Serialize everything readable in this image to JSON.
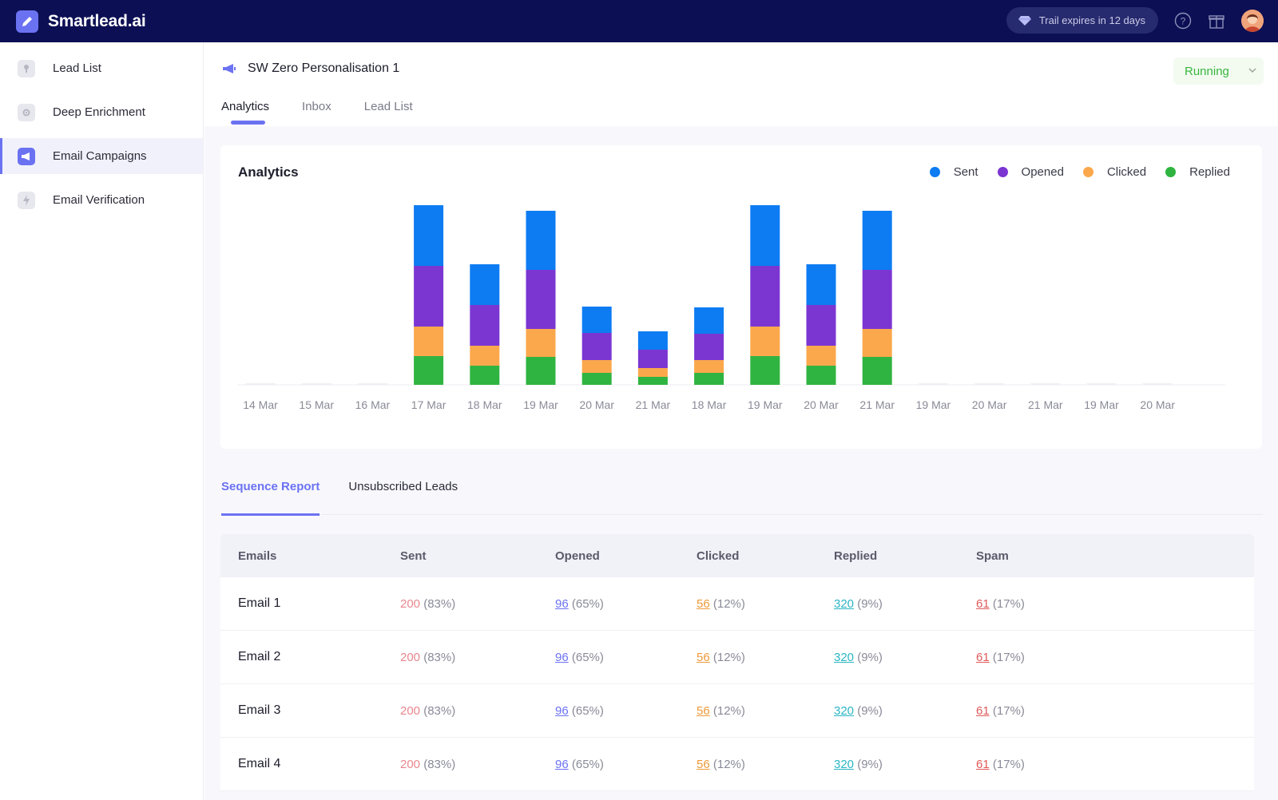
{
  "app": {
    "name": "Smartlead.ai"
  },
  "topbar": {
    "trial_text": "Trail expires in 12 days"
  },
  "sidebar": {
    "items": [
      {
        "label": "Lead List",
        "icon": "lead-list-icon"
      },
      {
        "label": "Deep Enrichment",
        "icon": "enrichment-icon"
      },
      {
        "label": "Email Campaigns",
        "icon": "megaphone-icon",
        "active": true
      },
      {
        "label": "Email Verification",
        "icon": "lightning-icon"
      }
    ]
  },
  "campaign": {
    "title": "SW Zero Personalisation 1",
    "status": "Running",
    "tabs": [
      "Analytics",
      "Inbox",
      "Lead List"
    ],
    "active_tab": "Analytics"
  },
  "colors": {
    "sent": "#0d7cf2",
    "opened": "#7b36d2",
    "clicked": "#fba84c",
    "replied": "#30b441",
    "accent": "#6b72f2"
  },
  "chart_data": {
    "type": "bar",
    "stacked": true,
    "title": "Analytics",
    "categories": [
      "14 Mar",
      "15 Mar",
      "16 Mar",
      "17 Mar",
      "18 Mar",
      "19 Mar",
      "20 Mar",
      "21 Mar",
      "18 Mar",
      "19 Mar",
      "20 Mar",
      "21 Mar",
      "19 Mar",
      "20 Mar",
      "21 Mar",
      "19 Mar",
      "20 Mar"
    ],
    "series": [
      {
        "name": "Replied",
        "color": "#30b441",
        "values": [
          0,
          0,
          0,
          36,
          24,
          35,
          15,
          10,
          15,
          36,
          24,
          35,
          0,
          0,
          0,
          0,
          0
        ]
      },
      {
        "name": "Clicked",
        "color": "#fba84c",
        "values": [
          0,
          0,
          0,
          37,
          25,
          35,
          16,
          11,
          16,
          37,
          25,
          35,
          0,
          0,
          0,
          0,
          0
        ]
      },
      {
        "name": "Opened",
        "color": "#7b36d2",
        "values": [
          0,
          0,
          0,
          76,
          51,
          74,
          34,
          23,
          33,
          76,
          51,
          74,
          0,
          0,
          0,
          0,
          0
        ]
      },
      {
        "name": "Sent",
        "color": "#0d7cf2",
        "values": [
          0,
          0,
          0,
          76,
          51,
          74,
          33,
          23,
          33,
          76,
          51,
          74,
          0,
          0,
          0,
          0,
          0
        ]
      }
    ],
    "legend_order": [
      "Sent",
      "Opened",
      "Clicked",
      "Replied"
    ],
    "ylim": [
      0,
      230
    ],
    "grid": false,
    "legend_position": "top-right"
  },
  "report": {
    "tabs": [
      "Sequence Report",
      "Unsubscribed Leads"
    ],
    "active_tab": "Sequence Report",
    "columns": [
      "Emails",
      "Sent",
      "Opened",
      "Clicked",
      "Replied",
      "Spam"
    ],
    "rows": [
      {
        "email": "Email 1",
        "sent": "200",
        "sent_pct": "(83%)",
        "opened": "96",
        "opened_pct": "(65%)",
        "clicked": "56",
        "clicked_pct": "(12%)",
        "replied": "320",
        "replied_pct": "(9%)",
        "spam": "61",
        "spam_pct": "(17%)"
      },
      {
        "email": "Email 2",
        "sent": "200",
        "sent_pct": "(83%)",
        "opened": "96",
        "opened_pct": "(65%)",
        "clicked": "56",
        "clicked_pct": "(12%)",
        "replied": "320",
        "replied_pct": "(9%)",
        "spam": "61",
        "spam_pct": "(17%)"
      },
      {
        "email": "Email 3",
        "sent": "200",
        "sent_pct": "(83%)",
        "opened": "96",
        "opened_pct": "(65%)",
        "clicked": "56",
        "clicked_pct": "(12%)",
        "replied": "320",
        "replied_pct": "(9%)",
        "spam": "61",
        "spam_pct": "(17%)"
      },
      {
        "email": "Email 4",
        "sent": "200",
        "sent_pct": "(83%)",
        "opened": "96",
        "opened_pct": "(65%)",
        "clicked": "56",
        "clicked_pct": "(12%)",
        "replied": "320",
        "replied_pct": "(9%)",
        "spam": "61",
        "spam_pct": "(17%)"
      }
    ]
  }
}
